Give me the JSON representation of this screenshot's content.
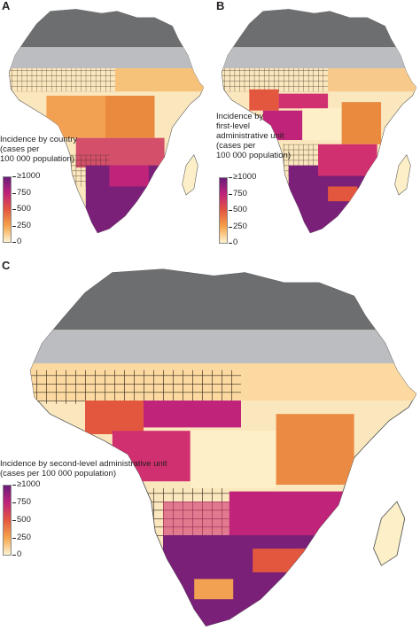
{
  "panels": [
    {
      "letter": "A",
      "legend_title": "Incidence by country\n(cases per\n100 000 population)",
      "legend_ticks": [
        "≥1000",
        "750",
        "500",
        "250",
        "0"
      ]
    },
    {
      "letter": "B",
      "legend_title": "Incidence by\nfirst-level\nadministrative unit\n(cases per\n100 000 population)",
      "legend_ticks": [
        "≥1000",
        "750",
        "500",
        "250",
        "0"
      ]
    },
    {
      "letter": "C",
      "legend_title": "Incidence by second-level administrative unit\n(cases per 100 000 population)",
      "legend_ticks": [
        "≥1000",
        "750",
        "500",
        "250",
        "0"
      ]
    }
  ],
  "colors": {
    "no_data_north": "#6d6e70",
    "no_data_sahel": "#bcbdc0",
    "scale_low": "#fdf3d1",
    "scale_mid_low": "#f6a34b",
    "scale_mid": "#e3573f",
    "scale_mid_high": "#c0237a",
    "scale_high": "#6a1b7a",
    "water": "#ffffff"
  },
  "icons": {
    "hatch": "crosshatch-pattern"
  }
}
